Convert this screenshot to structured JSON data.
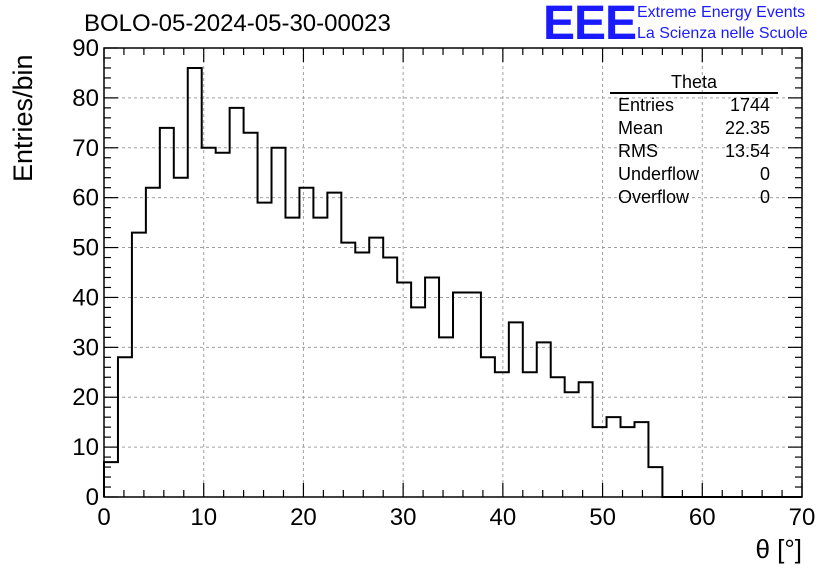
{
  "header": {
    "title": "BOLO-05-2024-05-30-00023",
    "logo_text": "EEE",
    "logo_line1": "Extreme Energy Events",
    "logo_line2": "La Scienza nelle Scuole"
  },
  "stats_box": {
    "name": "Theta",
    "rows": [
      {
        "label": "Entries",
        "value": "1744"
      },
      {
        "label": "Mean",
        "value": "22.35"
      },
      {
        "label": "RMS",
        "value": "13.54"
      },
      {
        "label": "Underflow",
        "value": "0"
      },
      {
        "label": "Overflow",
        "value": "0"
      }
    ]
  },
  "chart_data": {
    "type": "histogram",
    "title": "BOLO-05-2024-05-30-00023",
    "xlabel": "θ [°]",
    "ylabel": "Entries/bin",
    "xlim": [
      0,
      70
    ],
    "ylim": [
      0,
      90
    ],
    "bin_width": 1.4,
    "xticks": [
      0,
      10,
      20,
      30,
      40,
      50,
      60,
      70
    ],
    "yticks": [
      0,
      10,
      20,
      30,
      40,
      50,
      60,
      70,
      80,
      90
    ],
    "grid": true,
    "bins_start": 0,
    "values": [
      7,
      28,
      53,
      62,
      74,
      64,
      86,
      70,
      69,
      78,
      73,
      59,
      70,
      56,
      62,
      56,
      61,
      51,
      49,
      52,
      48,
      43,
      38,
      44,
      32,
      41,
      41,
      28,
      25,
      35,
      25,
      31,
      24,
      21,
      23,
      14,
      16,
      14,
      15,
      6,
      0,
      0,
      0,
      0,
      0,
      0,
      0,
      0,
      0,
      0
    ],
    "line_color": "#000000"
  }
}
